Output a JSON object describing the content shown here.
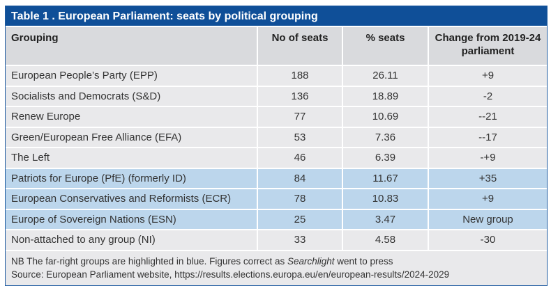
{
  "title": "Table 1 . European Parliament: seats by political grouping",
  "columns": [
    "Grouping",
    "No of seats",
    "% seats",
    "Change from 2019-24 parliament"
  ],
  "rows": [
    {
      "grouping": "European People’s Party (EPP)",
      "seats": "188",
      "pct": "26.11",
      "change": "+9",
      "highlight": false
    },
    {
      "grouping": "Socialists and Democrats (S&D)",
      "seats": "136",
      "pct": "18.89",
      "change": "-2",
      "highlight": false
    },
    {
      "grouping": "Renew Europe",
      "seats": "77",
      "pct": "10.69",
      "change": "--21",
      "highlight": false
    },
    {
      "grouping": "Green/European Free Alliance (EFA)",
      "seats": "53",
      "pct": "7.36",
      "change": "--17",
      "highlight": false
    },
    {
      "grouping": "The Left",
      "seats": "46",
      "pct": "6.39",
      "change": "-+9",
      "highlight": false
    },
    {
      "grouping": "Patriots for Europe (PfE) (formerly ID)",
      "seats": "84",
      "pct": "11.67",
      "change": "+35",
      "highlight": true
    },
    {
      "grouping": "European Conservatives and Reformists (ECR)",
      "seats": "78",
      "pct": "10.83",
      "change": "+9",
      "highlight": true
    },
    {
      "grouping": "Europe of Sovereign Nations (ESN)",
      "seats": "25",
      "pct": "3.47",
      "change": "New group",
      "highlight": true
    },
    {
      "grouping": "Non-attached to any group (NI)",
      "seats": "33",
      "pct": "4.58",
      "change": "-30",
      "highlight": false
    }
  ],
  "footnote": {
    "nb_before": "NB The far-right groups are highlighted in blue. Figures correct as ",
    "nb_italic": "Searchlight",
    "nb_after": " went to press",
    "source": "Source: European Parliament website, https://results.elections.europa.eu/en/european-results/2024-2029"
  },
  "colors": {
    "title_bar": "#0f4f98",
    "highlight": "#bcd6ec",
    "row": "#e9e9eb",
    "header": "#d9dadd"
  }
}
